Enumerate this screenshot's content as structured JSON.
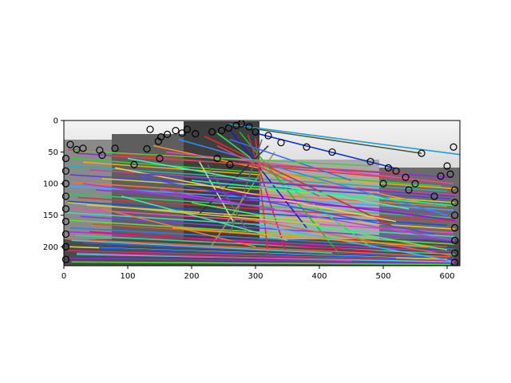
{
  "chart_data": {
    "type": "scatter",
    "title": "",
    "xlabel": "",
    "ylabel": "",
    "xlim": [
      0,
      620
    ],
    "ylim": [
      230,
      0
    ],
    "y_inverted": true,
    "grid": false,
    "legend": "none",
    "x_ticks": [
      0,
      100,
      200,
      300,
      400,
      500,
      600
    ],
    "y_ticks": [
      0,
      50,
      100,
      150,
      200
    ],
    "background_image": "grayscale stitched street photo (two side-by-side views)",
    "keypoint_marker": "open-black-circle",
    "keypoints": [
      [
        10,
        38
      ],
      [
        20,
        46
      ],
      [
        30,
        44
      ],
      [
        56,
        47
      ],
      [
        80,
        44
      ],
      [
        130,
        45
      ],
      [
        135,
        14
      ],
      [
        148,
        33
      ],
      [
        152,
        26
      ],
      [
        162,
        22
      ],
      [
        175,
        16
      ],
      [
        185,
        20
      ],
      [
        193,
        14
      ],
      [
        206,
        21
      ],
      [
        232,
        18
      ],
      [
        247,
        16
      ],
      [
        258,
        12
      ],
      [
        270,
        8
      ],
      [
        278,
        5
      ],
      [
        290,
        10
      ],
      [
        300,
        18
      ],
      [
        320,
        24
      ],
      [
        340,
        35
      ],
      [
        380,
        42
      ],
      [
        420,
        50
      ],
      [
        480,
        65
      ],
      [
        508,
        75
      ],
      [
        520,
        80
      ],
      [
        535,
        90
      ],
      [
        550,
        100
      ],
      [
        560,
        52
      ],
      [
        590,
        88
      ],
      [
        600,
        72
      ],
      [
        605,
        85
      ],
      [
        610,
        42
      ],
      [
        612,
        110
      ],
      [
        612,
        130
      ],
      [
        612,
        150
      ],
      [
        612,
        170
      ],
      [
        612,
        190
      ],
      [
        612,
        210
      ],
      [
        612,
        225
      ],
      [
        3,
        60
      ],
      [
        3,
        80
      ],
      [
        3,
        100
      ],
      [
        3,
        120
      ],
      [
        3,
        140
      ],
      [
        3,
        160
      ],
      [
        3,
        180
      ],
      [
        3,
        200
      ],
      [
        3,
        220
      ],
      [
        240,
        60
      ],
      [
        260,
        70
      ],
      [
        150,
        60
      ],
      [
        110,
        70
      ],
      [
        60,
        55
      ],
      [
        500,
        100
      ],
      [
        540,
        110
      ],
      [
        580,
        120
      ]
    ],
    "matches": [
      {
        "x1": 258,
        "y1": 6,
        "x2": 620,
        "y2": 54,
        "color": "#1f9fd0"
      },
      {
        "x1": 290,
        "y1": 12,
        "x2": 560,
        "y2": 52,
        "color": "#4a5d4a"
      },
      {
        "x1": 300,
        "y1": 20,
        "x2": 520,
        "y2": 76,
        "color": "#0b30c8"
      },
      {
        "x1": 8,
        "y1": 46,
        "x2": 600,
        "y2": 98,
        "color": "#e23a2a"
      },
      {
        "x1": 20,
        "y1": 52,
        "x2": 610,
        "y2": 90,
        "color": "#8c2fd9"
      },
      {
        "x1": 12,
        "y1": 60,
        "x2": 590,
        "y2": 104,
        "color": "#2fd12f"
      },
      {
        "x1": 30,
        "y1": 66,
        "x2": 612,
        "y2": 108,
        "color": "#f5a623"
      },
      {
        "x1": 5,
        "y1": 72,
        "x2": 600,
        "y2": 112,
        "color": "#1fb5a8"
      },
      {
        "x1": 40,
        "y1": 78,
        "x2": 615,
        "y2": 118,
        "color": "#e0399b"
      },
      {
        "x1": 10,
        "y1": 86,
        "x2": 605,
        "y2": 124,
        "color": "#5b3fd6"
      },
      {
        "x1": 60,
        "y1": 92,
        "x2": 612,
        "y2": 130,
        "color": "#b7d42a"
      },
      {
        "x1": 14,
        "y1": 98,
        "x2": 600,
        "y2": 136,
        "color": "#ff6f3c"
      },
      {
        "x1": 8,
        "y1": 104,
        "x2": 610,
        "y2": 142,
        "color": "#3caaff"
      },
      {
        "x1": 50,
        "y1": 110,
        "x2": 612,
        "y2": 148,
        "color": "#9a33cc"
      },
      {
        "x1": 4,
        "y1": 116,
        "x2": 605,
        "y2": 154,
        "color": "#29c765"
      },
      {
        "x1": 22,
        "y1": 122,
        "x2": 612,
        "y2": 160,
        "color": "#d93636"
      },
      {
        "x1": 6,
        "y1": 128,
        "x2": 600,
        "y2": 166,
        "color": "#1a4fd9"
      },
      {
        "x1": 36,
        "y1": 134,
        "x2": 612,
        "y2": 172,
        "color": "#e6c229"
      },
      {
        "x1": 12,
        "y1": 140,
        "x2": 610,
        "y2": 178,
        "color": "#ff42c8"
      },
      {
        "x1": 4,
        "y1": 146,
        "x2": 612,
        "y2": 184,
        "color": "#42d6c4"
      },
      {
        "x1": 26,
        "y1": 152,
        "x2": 605,
        "y2": 190,
        "color": "#7b3ff2"
      },
      {
        "x1": 8,
        "y1": 158,
        "x2": 612,
        "y2": 196,
        "color": "#62d94a"
      },
      {
        "x1": 45,
        "y1": 164,
        "x2": 600,
        "y2": 200,
        "color": "#d9542f"
      },
      {
        "x1": 10,
        "y1": 170,
        "x2": 612,
        "y2": 204,
        "color": "#2f7fd9"
      },
      {
        "x1": 4,
        "y1": 176,
        "x2": 610,
        "y2": 208,
        "color": "#c02ad9"
      },
      {
        "x1": 18,
        "y1": 182,
        "x2": 612,
        "y2": 212,
        "color": "#2ad98a"
      },
      {
        "x1": 6,
        "y1": 188,
        "x2": 605,
        "y2": 216,
        "color": "#f2602f"
      },
      {
        "x1": 30,
        "y1": 194,
        "x2": 612,
        "y2": 218,
        "color": "#355ae8"
      },
      {
        "x1": 8,
        "y1": 200,
        "x2": 600,
        "y2": 220,
        "color": "#d6e02a"
      },
      {
        "x1": 4,
        "y1": 206,
        "x2": 612,
        "y2": 222,
        "color": "#e02a6a"
      },
      {
        "x1": 20,
        "y1": 212,
        "x2": 610,
        "y2": 224,
        "color": "#2ae0e0"
      },
      {
        "x1": 6,
        "y1": 218,
        "x2": 612,
        "y2": 226,
        "color": "#8a2ae0"
      },
      {
        "x1": 12,
        "y1": 224,
        "x2": 605,
        "y2": 228,
        "color": "#4ae02a"
      },
      {
        "x1": 140,
        "y1": 40,
        "x2": 560,
        "y2": 130,
        "color": "#ff8c2a"
      },
      {
        "x1": 180,
        "y1": 30,
        "x2": 600,
        "y2": 150,
        "color": "#2a8cff"
      },
      {
        "x1": 220,
        "y1": 25,
        "x2": 520,
        "y2": 170,
        "color": "#e02a2a"
      },
      {
        "x1": 240,
        "y1": 20,
        "x2": 480,
        "y2": 200,
        "color": "#2ae05a"
      },
      {
        "x1": 260,
        "y1": 15,
        "x2": 380,
        "y2": 170,
        "color": "#1c1cd6"
      },
      {
        "x1": 275,
        "y1": 18,
        "x2": 430,
        "y2": 210,
        "color": "#17c217"
      },
      {
        "x1": 288,
        "y1": 22,
        "x2": 350,
        "y2": 215,
        "color": "#d61c6c"
      },
      {
        "x1": 300,
        "y1": 28,
        "x2": 320,
        "y2": 215,
        "color": "#c93b3b"
      },
      {
        "x1": 310,
        "y1": 30,
        "x2": 260,
        "y2": 180,
        "color": "#6c6c6c"
      },
      {
        "x1": 320,
        "y1": 40,
        "x2": 210,
        "y2": 150,
        "color": "#2f2f2f"
      },
      {
        "x1": 330,
        "y1": 50,
        "x2": 230,
        "y2": 200,
        "color": "#9b9b4a"
      },
      {
        "x1": 212,
        "y1": 65,
        "x2": 265,
        "y2": 160,
        "color": "#c8d9a0"
      },
      {
        "x1": 225,
        "y1": 70,
        "x2": 290,
        "y2": 180,
        "color": "#6a6a6a"
      },
      {
        "x1": 160,
        "y1": 50,
        "x2": 610,
        "y2": 100,
        "color": "#f542a1"
      },
      {
        "x1": 100,
        "y1": 60,
        "x2": 540,
        "y2": 140,
        "color": "#42f5b0"
      },
      {
        "x1": 80,
        "y1": 75,
        "x2": 520,
        "y2": 160,
        "color": "#f5d142"
      },
      {
        "x1": 120,
        "y1": 90,
        "x2": 580,
        "y2": 180,
        "color": "#4251f5"
      },
      {
        "x1": 150,
        "y1": 110,
        "x2": 612,
        "y2": 190,
        "color": "#b542f5"
      },
      {
        "x1": 200,
        "y1": 130,
        "x2": 600,
        "y2": 205,
        "color": "#42f55a"
      },
      {
        "x1": 250,
        "y1": 150,
        "x2": 612,
        "y2": 215,
        "color": "#f55a42"
      },
      {
        "x1": 300,
        "y1": 165,
        "x2": 605,
        "y2": 222,
        "color": "#42b5f5"
      },
      {
        "x1": 60,
        "y1": 140,
        "x2": 300,
        "y2": 200,
        "color": "#e87a3c"
      },
      {
        "x1": 90,
        "y1": 120,
        "x2": 350,
        "y2": 190,
        "color": "#3ce8a8"
      },
      {
        "x1": 30,
        "y1": 100,
        "x2": 330,
        "y2": 140,
        "color": "#a83ce8"
      },
      {
        "x1": 240,
        "y1": 40,
        "x2": 400,
        "y2": 120,
        "color": "#e83c6a"
      },
      {
        "x1": 260,
        "y1": 30,
        "x2": 450,
        "y2": 95,
        "color": "#3c6ae8"
      },
      {
        "x1": 16,
        "y1": 48,
        "x2": 480,
        "y2": 72,
        "color": "#4ac94a"
      },
      {
        "x1": 70,
        "y1": 56,
        "x2": 540,
        "y2": 84,
        "color": "#c94a4a"
      },
      {
        "x1": 110,
        "y1": 84,
        "x2": 612,
        "y2": 120,
        "color": "#4a4ac9"
      },
      {
        "x1": 6,
        "y1": 130,
        "x2": 400,
        "y2": 165,
        "color": "#c9c94a"
      },
      {
        "x1": 12,
        "y1": 190,
        "x2": 420,
        "y2": 210,
        "color": "#4ac9c9"
      },
      {
        "x1": 20,
        "y1": 210,
        "x2": 450,
        "y2": 222,
        "color": "#c94ac9"
      },
      {
        "x1": 170,
        "y1": 170,
        "x2": 570,
        "y2": 200,
        "color": "#ff9d00"
      },
      {
        "x1": 200,
        "y1": 95,
        "x2": 612,
        "y2": 135,
        "color": "#00ff9d"
      },
      {
        "x1": 230,
        "y1": 110,
        "x2": 612,
        "y2": 158,
        "color": "#9d00ff"
      },
      {
        "x1": 40,
        "y1": 176,
        "x2": 500,
        "y2": 208,
        "color": "#ff0066"
      },
      {
        "x1": 55,
        "y1": 202,
        "x2": 520,
        "y2": 218,
        "color": "#0066ff"
      }
    ]
  }
}
